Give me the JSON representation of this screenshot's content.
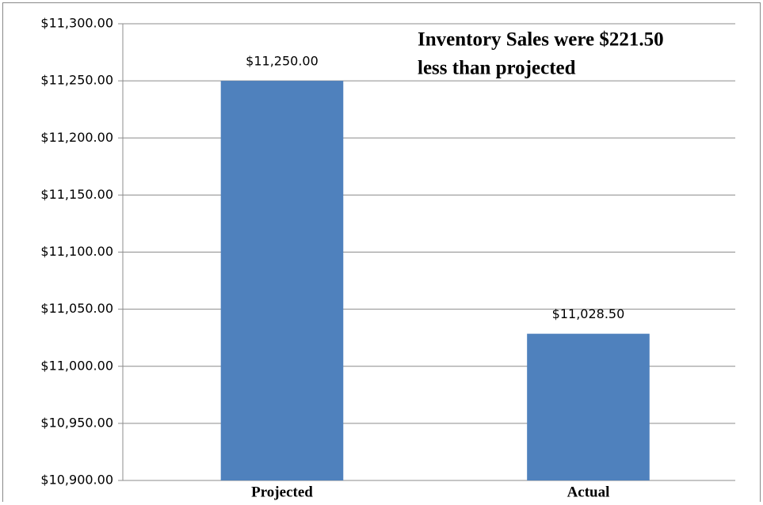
{
  "chart_data": {
    "type": "bar",
    "annotation": [
      "Inventory Sales were $221.50",
      "less than projected"
    ],
    "categories": [
      "Projected",
      "Actual"
    ],
    "values": [
      11250,
      11028.5
    ],
    "value_labels": [
      "$11,250.00",
      "$11,028.50"
    ],
    "color": "#4f81bd",
    "ylim": [
      10900,
      11300
    ],
    "yticks": [
      {
        "value": 10900,
        "label": "$10,900.00"
      },
      {
        "value": 10950,
        "label": "$10,950.00"
      },
      {
        "value": 11000,
        "label": "$11,000.00"
      },
      {
        "value": 11050,
        "label": "$11,050.00"
      },
      {
        "value": 11100,
        "label": "$11,100.00"
      },
      {
        "value": 11150,
        "label": "$11,150.00"
      },
      {
        "value": 11200,
        "label": "$11,200.00"
      },
      {
        "value": 11250,
        "label": "$11,250.00"
      },
      {
        "value": 11300,
        "label": "$11,300.00"
      }
    ],
    "grid": true
  }
}
